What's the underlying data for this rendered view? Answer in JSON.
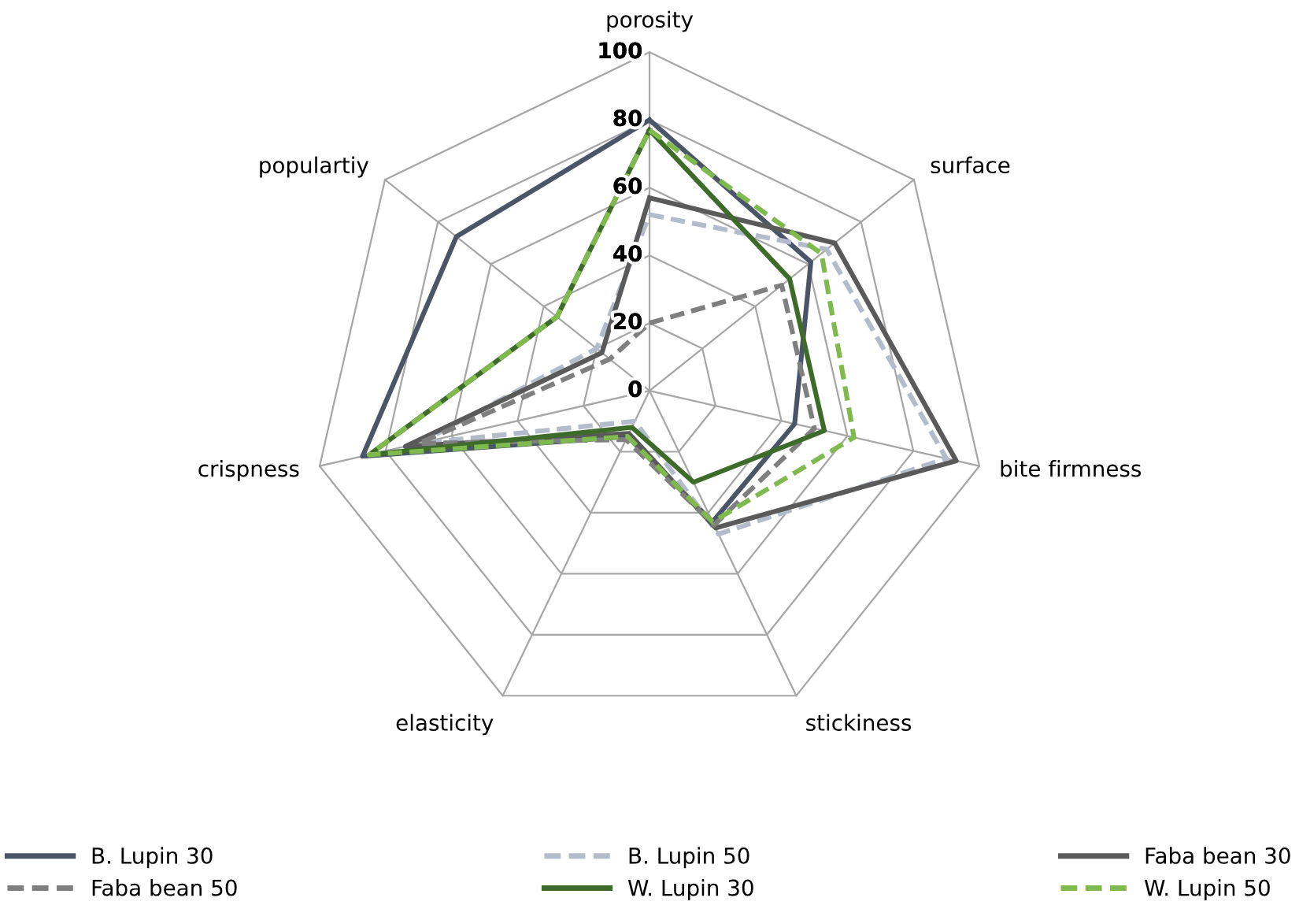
{
  "chart_data": {
    "type": "radar",
    "categories": [
      "porosity",
      "surface",
      "bite firmness",
      "stickiness",
      "elasticity",
      "crispness",
      "populartiy"
    ],
    "ylim": [
      0,
      100
    ],
    "yticks": [
      0,
      20,
      40,
      60,
      80,
      100
    ],
    "grid": true,
    "legend": "bottom",
    "marker": "none",
    "series": [
      {
        "name": "B. Lupin 30",
        "color": "#4a5668",
        "line_style": "solid",
        "values": [
          80,
          61,
          44,
          43,
          15,
          87,
          73
        ]
      },
      {
        "name": "B. Lupin 50",
        "color": "#b4bccb",
        "line_style": "dashed",
        "values": [
          52,
          67,
          90,
          47,
          10,
          70,
          20
        ]
      },
      {
        "name": "Faba bean 30",
        "color": "#5a5a5a",
        "line_style": "solid",
        "values": [
          57,
          70,
          93,
          45,
          14,
          74,
          18
        ]
      },
      {
        "name": "Faba bean 50",
        "color": "#7f7f7f",
        "line_style": "dashed",
        "values": [
          20,
          50,
          50,
          44,
          16,
          70,
          15
        ]
      },
      {
        "name": "W. Lupin 30",
        "color": "#3d6b2a",
        "line_style": "solid",
        "values": [
          77,
          53,
          53,
          30,
          12,
          85,
          35
        ]
      },
      {
        "name": "W. Lupin 50",
        "color": "#7fba4f",
        "line_style": "dashed",
        "values": [
          77,
          65,
          62,
          43,
          15,
          85,
          35
        ]
      }
    ]
  }
}
